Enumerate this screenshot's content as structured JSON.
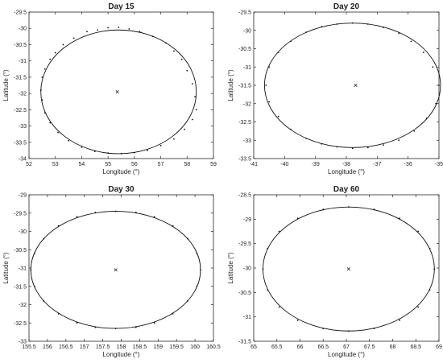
{
  "chart_data": [
    {
      "type": "scatter",
      "title": "Day 15",
      "xlabel": "Longitude (°)",
      "ylabel": "Latitude (°)",
      "xlim": [
        52,
        59
      ],
      "ylim": [
        -34,
        -29.5
      ],
      "xticks": [
        "52",
        "53",
        "54",
        "55",
        "56",
        "57",
        "58",
        "59"
      ],
      "yticks": [
        "-29.5",
        "-30",
        "-30.5",
        "-31",
        "-31.5",
        "-32",
        "-32.5",
        "-33",
        "-33.5",
        "-34"
      ],
      "grid": false,
      "center": {
        "x": 55.35,
        "y": -31.95
      },
      "ellipse": {
        "cx": 55.4,
        "cy": -31.95,
        "rx": 2.95,
        "ry": 1.9
      },
      "points": [
        {
          "x": 52.5,
          "y": -31.5
        },
        {
          "x": 52.6,
          "y": -31.25
        },
        {
          "x": 52.8,
          "y": -30.95
        },
        {
          "x": 53.0,
          "y": -30.75
        },
        {
          "x": 53.3,
          "y": -30.5
        },
        {
          "x": 53.7,
          "y": -30.3
        },
        {
          "x": 54.2,
          "y": -30.1
        },
        {
          "x": 54.6,
          "y": -30.05
        },
        {
          "x": 55.0,
          "y": -29.98
        },
        {
          "x": 55.4,
          "y": -29.97
        },
        {
          "x": 55.8,
          "y": -30.02
        },
        {
          "x": 56.2,
          "y": -30.1
        },
        {
          "x": 56.7,
          "y": -30.25
        },
        {
          "x": 57.2,
          "y": -30.45
        },
        {
          "x": 57.5,
          "y": -30.7
        },
        {
          "x": 57.8,
          "y": -30.95
        },
        {
          "x": 58.0,
          "y": -31.3
        },
        {
          "x": 58.2,
          "y": -31.7
        },
        {
          "x": 58.3,
          "y": -32.1
        },
        {
          "x": 58.35,
          "y": -32.5
        },
        {
          "x": 58.2,
          "y": -32.8
        },
        {
          "x": 57.9,
          "y": -33.1
        },
        {
          "x": 57.5,
          "y": -33.4
        },
        {
          "x": 57.0,
          "y": -33.6
        },
        {
          "x": 56.5,
          "y": -33.75
        },
        {
          "x": 56.0,
          "y": -33.82
        },
        {
          "x": 55.5,
          "y": -33.85
        },
        {
          "x": 55.0,
          "y": -33.83
        },
        {
          "x": 54.5,
          "y": -33.78
        },
        {
          "x": 54.0,
          "y": -33.65
        },
        {
          "x": 53.5,
          "y": -33.45
        },
        {
          "x": 53.1,
          "y": -33.2
        },
        {
          "x": 52.8,
          "y": -32.9
        },
        {
          "x": 52.6,
          "y": -32.6
        },
        {
          "x": 52.5,
          "y": -32.2
        },
        {
          "x": 52.45,
          "y": -31.9
        }
      ]
    },
    {
      "type": "scatter",
      "title": "Day 20",
      "xlabel": "Longitude (°)",
      "ylabel": "Latitude (°)",
      "xlim": [
        -41,
        -35
      ],
      "ylim": [
        -33.5,
        -29.5
      ],
      "xticks": [
        "-41",
        "-40",
        "-39",
        "-38",
        "-37",
        "-36",
        "-35"
      ],
      "yticks": [
        "-29.5",
        "-30",
        "-30.5",
        "-31",
        "-31.5",
        "-32",
        "-32.5",
        "-33",
        "-33.5"
      ],
      "grid": false,
      "center": {
        "x": -37.7,
        "y": -31.5
      },
      "ellipse": {
        "cx": -37.8,
        "cy": -31.5,
        "rx": 2.85,
        "ry": 1.7
      },
      "points": [
        {
          "x": -40.6,
          "y": -31.5
        },
        {
          "x": -40.5,
          "y": -31.0
        },
        {
          "x": -40.2,
          "y": -30.6
        },
        {
          "x": -39.8,
          "y": -30.3
        },
        {
          "x": -39.3,
          "y": -30.05
        },
        {
          "x": -38.8,
          "y": -29.9
        },
        {
          "x": -38.3,
          "y": -29.83
        },
        {
          "x": -37.8,
          "y": -29.8
        },
        {
          "x": -37.3,
          "y": -29.83
        },
        {
          "x": -36.8,
          "y": -29.92
        },
        {
          "x": -36.3,
          "y": -30.08
        },
        {
          "x": -35.9,
          "y": -30.3
        },
        {
          "x": -35.5,
          "y": -30.6
        },
        {
          "x": -35.2,
          "y": -31.0
        },
        {
          "x": -35.0,
          "y": -31.5
        },
        {
          "x": -35.1,
          "y": -32.0
        },
        {
          "x": -35.4,
          "y": -32.4
        },
        {
          "x": -35.8,
          "y": -32.75
        },
        {
          "x": -36.3,
          "y": -33.0
        },
        {
          "x": -36.8,
          "y": -33.13
        },
        {
          "x": -37.3,
          "y": -33.2
        },
        {
          "x": -37.8,
          "y": -33.22
        },
        {
          "x": -38.3,
          "y": -33.18
        },
        {
          "x": -38.8,
          "y": -33.1
        },
        {
          "x": -39.3,
          "y": -32.95
        },
        {
          "x": -39.8,
          "y": -32.7
        },
        {
          "x": -40.2,
          "y": -32.35
        },
        {
          "x": -40.5,
          "y": -31.95
        }
      ]
    },
    {
      "type": "scatter",
      "title": "Day 30",
      "xlabel": "Longitude (°)",
      "ylabel": "Latitude (°)",
      "xlim": [
        155.5,
        160.5
      ],
      "ylim": [
        -33,
        -29
      ],
      "xticks": [
        "155.5",
        "156",
        "156.5",
        "157",
        "157.5",
        "158",
        "158.5",
        "159",
        "159.5",
        "160",
        "160.5"
      ],
      "yticks": [
        "-29",
        "-29.5",
        "-30",
        "-30.5",
        "-31",
        "-31.5",
        "-32",
        "-32.5",
        "-33"
      ],
      "grid": false,
      "center": {
        "x": 157.85,
        "y": -31.05
      },
      "ellipse": {
        "cx": 157.85,
        "cy": -31.05,
        "rx": 2.3,
        "ry": 1.6
      },
      "points": [
        {
          "x": 155.55,
          "y": -31.05
        },
        {
          "x": 155.65,
          "y": -30.6
        },
        {
          "x": 155.9,
          "y": -30.2
        },
        {
          "x": 156.3,
          "y": -29.85
        },
        {
          "x": 156.8,
          "y": -29.6
        },
        {
          "x": 157.3,
          "y": -29.48
        },
        {
          "x": 157.85,
          "y": -29.45
        },
        {
          "x": 158.4,
          "y": -29.48
        },
        {
          "x": 158.9,
          "y": -29.6
        },
        {
          "x": 159.4,
          "y": -29.85
        },
        {
          "x": 159.8,
          "y": -30.2
        },
        {
          "x": 160.05,
          "y": -30.6
        },
        {
          "x": 160.15,
          "y": -31.05
        },
        {
          "x": 160.05,
          "y": -31.5
        },
        {
          "x": 159.8,
          "y": -31.9
        },
        {
          "x": 159.4,
          "y": -32.25
        },
        {
          "x": 158.9,
          "y": -32.5
        },
        {
          "x": 158.4,
          "y": -32.62
        },
        {
          "x": 157.85,
          "y": -32.65
        },
        {
          "x": 157.3,
          "y": -32.62
        },
        {
          "x": 156.8,
          "y": -32.5
        },
        {
          "x": 156.3,
          "y": -32.25
        },
        {
          "x": 155.9,
          "y": -31.9
        },
        {
          "x": 155.65,
          "y": -31.5
        }
      ]
    },
    {
      "type": "scatter",
      "title": "Day 60",
      "xlabel": "Longitude (°)",
      "ylabel": "Latitude (°)",
      "xlim": [
        65,
        69
      ],
      "ylim": [
        -31.5,
        -28.5
      ],
      "xticks": [
        "65",
        "65.5",
        "66",
        "66.5",
        "67",
        "67.5",
        "68",
        "68.5",
        "69"
      ],
      "yticks": [
        "-28.5",
        "-29",
        "-29.5",
        "-30",
        "-30.5",
        "-31",
        "-31.5"
      ],
      "grid": false,
      "center": {
        "x": 67.05,
        "y": -30.02
      },
      "ellipse": {
        "cx": 67.05,
        "cy": -30.02,
        "rx": 1.85,
        "ry": 1.27
      },
      "points": [
        {
          "x": 65.2,
          "y": -30.02
        },
        {
          "x": 65.3,
          "y": -29.6
        },
        {
          "x": 65.55,
          "y": -29.25
        },
        {
          "x": 65.95,
          "y": -28.98
        },
        {
          "x": 66.5,
          "y": -28.8
        },
        {
          "x": 67.05,
          "y": -28.75
        },
        {
          "x": 67.6,
          "y": -28.8
        },
        {
          "x": 68.15,
          "y": -28.98
        },
        {
          "x": 68.55,
          "y": -29.25
        },
        {
          "x": 68.8,
          "y": -29.6
        },
        {
          "x": 68.9,
          "y": -30.02
        },
        {
          "x": 68.8,
          "y": -30.45
        },
        {
          "x": 68.55,
          "y": -30.8
        },
        {
          "x": 68.15,
          "y": -31.07
        },
        {
          "x": 67.6,
          "y": -31.24
        },
        {
          "x": 67.05,
          "y": -31.29
        },
        {
          "x": 66.5,
          "y": -31.24
        },
        {
          "x": 65.95,
          "y": -31.07
        },
        {
          "x": 65.55,
          "y": -30.8
        },
        {
          "x": 65.3,
          "y": -30.45
        }
      ]
    }
  ]
}
